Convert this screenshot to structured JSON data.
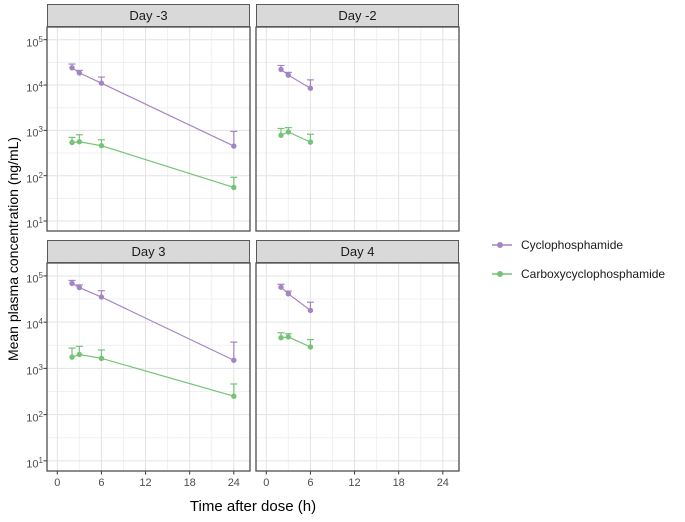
{
  "chart_data": {
    "type": "line",
    "title": "",
    "xlabel": "Time after dose (h)",
    "ylabel": "Mean plasma concentration (ng/mL)",
    "x_ticks": [
      0,
      6,
      12,
      18,
      24
    ],
    "x_minor_ticks": [
      3,
      9,
      15,
      21
    ],
    "y_tick_exponents": [
      1,
      2,
      3,
      4,
      5
    ],
    "y_minor_exponents": [
      1.5,
      2.5,
      3.5,
      4.5
    ],
    "y_scale": "log10",
    "x_range": [
      -1.4,
      26.2
    ],
    "y_log_range": [
      0.78,
      5.28
    ],
    "grid": true,
    "legend_position": "right",
    "series_meta": [
      {
        "name": "Cyclophosphamide",
        "color": "#A584C5"
      },
      {
        "name": "Carboxycyclophosphamide",
        "color": "#74C376"
      }
    ],
    "facets": [
      {
        "title": "Day -3",
        "series": [
          {
            "name": "Cyclophosphamide",
            "x": [
              2,
              3,
              6,
              24
            ],
            "y": [
              24000,
              18500,
              11000,
              450
            ],
            "y_hi": [
              29000,
              21000,
              15000,
              950
            ]
          },
          {
            "name": "Carboxycyclophosphamide",
            "x": [
              2,
              3,
              6,
              24
            ],
            "y": [
              540,
              560,
              460,
              55
            ],
            "y_hi": [
              700,
              800,
              620,
              92
            ]
          }
        ]
      },
      {
        "title": "Day -2",
        "series": [
          {
            "name": "Cyclophosphamide",
            "x": [
              2,
              3,
              6
            ],
            "y": [
              22000,
              16500,
              8500
            ],
            "y_hi": [
              27000,
              19000,
              13000
            ]
          },
          {
            "name": "Carboxycyclophosphamide",
            "x": [
              2,
              3,
              6
            ],
            "y": [
              780,
              920,
              550
            ],
            "y_hi": [
              1100,
              1150,
              820
            ]
          }
        ]
      },
      {
        "title": "Day 3",
        "series": [
          {
            "name": "Cyclophosphamide",
            "x": [
              2,
              3,
              6,
              24
            ],
            "y": [
              69000,
              56000,
              35000,
              1500
            ],
            "y_hi": [
              80000,
              64000,
              48000,
              3700
            ]
          },
          {
            "name": "Carboxycyclophosphamide",
            "x": [
              2,
              3,
              6,
              24
            ],
            "y": [
              1750,
              2000,
              1650,
              250
            ],
            "y_hi": [
              2750,
              3000,
              2500,
              460
            ]
          }
        ]
      },
      {
        "title": "Day 4",
        "series": [
          {
            "name": "Cyclophosphamide",
            "x": [
              2,
              3,
              6
            ],
            "y": [
              57000,
              41000,
              18000
            ],
            "y_hi": [
              66000,
              47000,
              27000
            ]
          },
          {
            "name": "Carboxycyclophosphamide",
            "x": [
              2,
              3,
              6
            ],
            "y": [
              4600,
              4800,
              2900
            ],
            "y_hi": [
              5900,
              5600,
              4200
            ]
          }
        ]
      }
    ]
  },
  "legend": {
    "items": [
      {
        "label": "Cyclophosphamide",
        "color": "#A584C5"
      },
      {
        "label": "Carboxycyclophosphamide",
        "color": "#74C376"
      }
    ]
  },
  "styles": {
    "strip_bg": "#D9D9D9",
    "strip_border": "#595959",
    "panel_border": "#4D4D4D",
    "panel_bg": "#FFFFFF",
    "grid_major": "#E3E3E3",
    "grid_minor": "#F1F1F1",
    "tick_color": "#333333",
    "tick_label_color": "#4D4D4D",
    "title_color": "#000000"
  }
}
